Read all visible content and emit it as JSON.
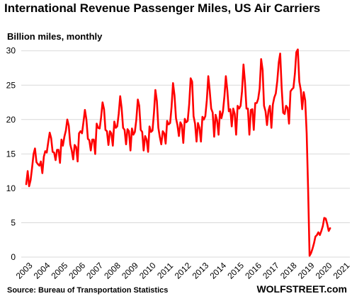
{
  "title": "International  Revenue Passenger Miles, US Air Carriers",
  "subtitle": "Billion miles, monthly",
  "source": "Source: Bureau of Transportation Statistics",
  "brand": "WOLFSTREET.com",
  "colors": {
    "line": "#ff0000",
    "grid": "#d9d9d9",
    "text": "#000000"
  },
  "chart_data": {
    "type": "line",
    "title": "International  Revenue Passenger Miles, US Air Carriers",
    "ylabel": "Billion miles, monthly",
    "xlabel": "",
    "ylim": [
      0,
      31
    ],
    "yticks": [
      0,
      5,
      10,
      15,
      20,
      25,
      30
    ],
    "xticks": [
      "2003",
      "2004",
      "2005",
      "2006",
      "2007",
      "2008",
      "2009",
      "2010",
      "2011",
      "2012",
      "2013",
      "2014",
      "2015",
      "2016",
      "2017",
      "2018",
      "2019",
      "2020",
      "2021"
    ],
    "grid": true,
    "legend": "none",
    "x_start": "2003-01",
    "x_end": "2021-04",
    "series": [
      {
        "values": [
          10.6,
          12.5,
          10.3,
          11.2,
          13.0,
          15.0,
          15.8,
          13.8,
          13.5,
          13.3,
          13.9,
          12.2,
          14.6,
          15.4,
          15.2,
          16.7,
          18.1,
          17.3,
          15.3,
          15.2,
          14.1,
          15.6,
          15.6,
          13.7,
          17.1,
          16.2,
          17.5,
          18.4,
          20.0,
          19.1,
          16.4,
          15.5,
          14.2,
          16.3,
          16.0,
          13.9,
          18.0,
          18.3,
          18.0,
          19.6,
          21.4,
          20.0,
          17.2,
          17.0,
          15.5,
          17.1,
          17.1,
          15.0,
          19.4,
          18.8,
          18.7,
          20.3,
          22.5,
          21.5,
          18.5,
          18.3,
          16.3,
          18.3,
          18.0,
          16.2,
          19.7,
          18.8,
          19.0,
          20.8,
          23.4,
          21.7,
          18.8,
          18.5,
          16.4,
          18.6,
          18.3,
          15.5,
          18.7,
          17.8,
          18.2,
          20.0,
          22.9,
          22.0,
          18.5,
          18.2,
          15.5,
          17.6,
          17.1,
          15.3,
          19.0,
          18.2,
          18.4,
          21.0,
          24.3,
          22.7,
          18.8,
          17.5,
          16.4,
          18.3,
          18.0,
          16.5,
          19.8,
          19.3,
          19.5,
          21.8,
          25.3,
          23.5,
          20.2,
          19.2,
          17.6,
          19.6,
          19.2,
          16.6,
          20.1,
          19.6,
          19.8,
          22.2,
          26.0,
          25.5,
          20.5,
          19.4,
          16.8,
          19.5,
          18.8,
          16.8,
          20.4,
          20.0,
          20.5,
          22.8,
          26.3,
          24.2,
          21.6,
          21.0,
          17.5,
          20.7,
          19.9,
          17.8,
          21.2,
          20.2,
          21.2,
          23.4,
          26.3,
          24.2,
          21.2,
          21.5,
          19.0,
          21.6,
          20.8,
          17.8,
          22.0,
          21.6,
          22.0,
          24.1,
          28.0,
          25.4,
          21.6,
          21.6,
          17.8,
          21.4,
          21.5,
          18.5,
          22.4,
          22.4,
          23.0,
          24.5,
          28.8,
          27.2,
          22.0,
          21.2,
          19.2,
          21.3,
          22.0,
          18.8,
          22.2,
          23.2,
          23.8,
          25.6,
          28.3,
          29.6,
          24.6,
          21.0,
          20.8,
          22.0,
          21.7,
          19.4,
          24.1,
          24.4,
          24.6,
          26.7,
          29.8,
          30.2,
          25.5,
          24.3,
          21.5,
          24.0,
          22.8,
          18.0,
          10.0,
          0.2,
          0.6,
          1.2,
          2.0,
          3.0,
          3.2,
          3.6,
          3.2,
          3.8,
          4.5,
          5.7,
          5.6,
          4.8,
          3.8,
          4.2
        ]
      }
    ]
  }
}
